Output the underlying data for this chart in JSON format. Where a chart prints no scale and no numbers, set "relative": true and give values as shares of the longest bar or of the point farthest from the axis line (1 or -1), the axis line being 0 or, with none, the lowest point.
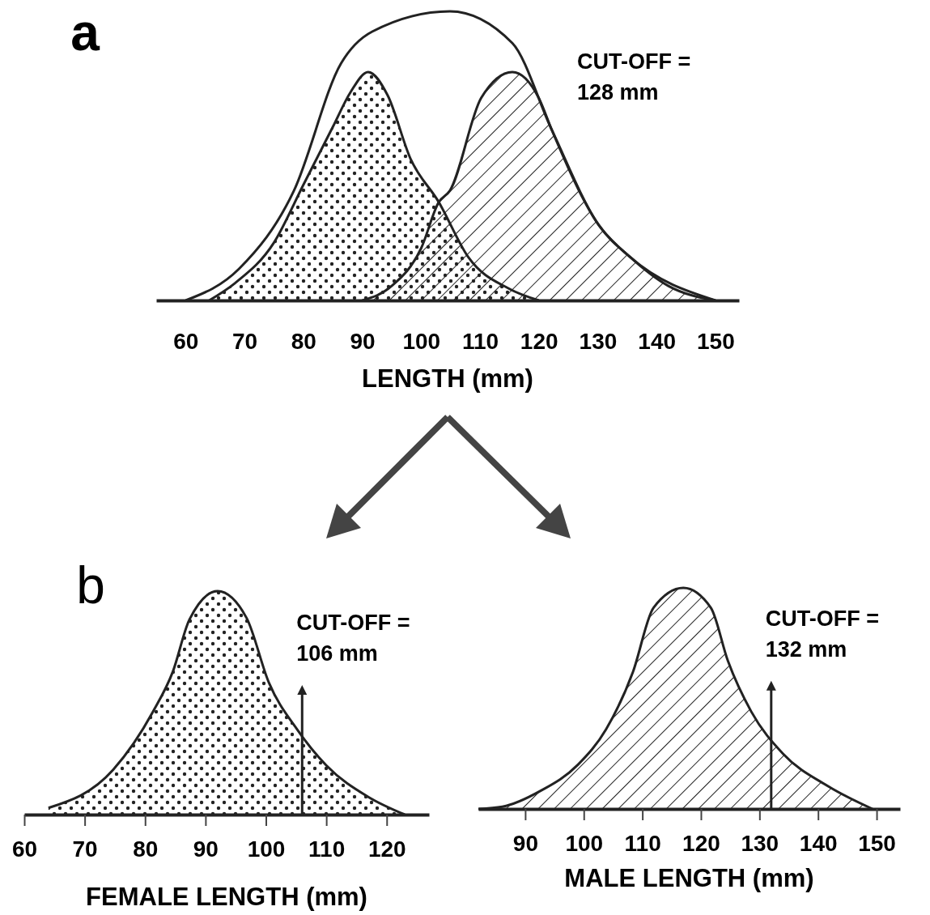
{
  "chart_data": [
    {
      "type": "area",
      "relative": true,
      "xlabel": "LENGTH (mm)",
      "xlim": [
        55,
        154
      ],
      "xticks": [
        60,
        70,
        80,
        90,
        100,
        110,
        120,
        130,
        140,
        150
      ],
      "annotations": [
        "a",
        "CUT-OFF =\n128 mm"
      ],
      "series": [
        {
          "color": "#222222",
          "x": [
            64,
            68.4,
            75,
            80,
            85,
            88,
            91,
            94.3,
            98.2,
            103,
            108,
            115,
            120
          ],
          "values": [
            0,
            0.06,
            0.2,
            0.4,
            0.6,
            0.72,
            0.79,
            0.71,
            0.49,
            0.34,
            0.15,
            0.04,
            0
          ]
        },
        {
          "color": "#222222",
          "x": [
            90,
            95,
            100,
            103,
            104.9,
            110.2,
            115.5,
            120,
            122.2,
            130.2,
            135.5,
            142,
            150
          ],
          "values": [
            0,
            0.05,
            0.18,
            0.34,
            0.38,
            0.7,
            0.79,
            0.7,
            0.59,
            0.26,
            0.15,
            0.05,
            0
          ]
        },
        {
          "type": "line",
          "color": "#222222",
          "x": [
            60,
            69.1,
            78.4,
            86.4,
            91.7,
            104.9,
            115.5,
            122.2,
            130.2,
            135.5,
            150
          ],
          "values": [
            0,
            0.11,
            0.38,
            0.82,
            0.93,
            1,
            0.89,
            0.59,
            0.26,
            0.15,
            0
          ]
        }
      ]
    },
    {
      "type": "area",
      "relative": true,
      "xlabel": "FEMALE LENGTH (mm)",
      "xlim": [
        60,
        127
      ],
      "xticks": [
        60,
        70,
        80,
        90,
        100,
        110,
        120
      ],
      "annotations": [
        "b"
      ],
      "ref_lines": [
        {
          "axis": "x",
          "value": 106,
          "label": "CUT-OFF =\n106 mm"
        }
      ],
      "series": [
        {
          "color": "#222222",
          "x": [
            64,
            74.7,
            81.3,
            84.6,
            87.3,
            92,
            96.8,
            100.5,
            105.2,
            110,
            116.9,
            123
          ],
          "values": [
            0.03,
            0.2,
            0.46,
            0.64,
            0.87,
            1,
            0.88,
            0.59,
            0.38,
            0.22,
            0.08,
            0
          ]
        }
      ]
    },
    {
      "type": "area",
      "relative": true,
      "xlabel": "MALE LENGTH (mm)",
      "xlim": [
        82,
        154
      ],
      "xticks": [
        90,
        100,
        110,
        120,
        130,
        140,
        150
      ],
      "ref_lines": [
        {
          "axis": "x",
          "value": 132,
          "label": "CUT-OFF =\n132 mm"
        }
      ],
      "series": [
        {
          "color": "#222222",
          "x": [
            82,
            86.1,
            92.5,
            99,
            103.8,
            108.4,
            111.9,
            117,
            121.7,
            124.6,
            128.6,
            134,
            141.9,
            149.3
          ],
          "values": [
            0,
            0.01,
            0.08,
            0.2,
            0.36,
            0.62,
            0.91,
            1,
            0.91,
            0.67,
            0.44,
            0.25,
            0.1,
            0
          ]
        }
      ]
    }
  ]
}
